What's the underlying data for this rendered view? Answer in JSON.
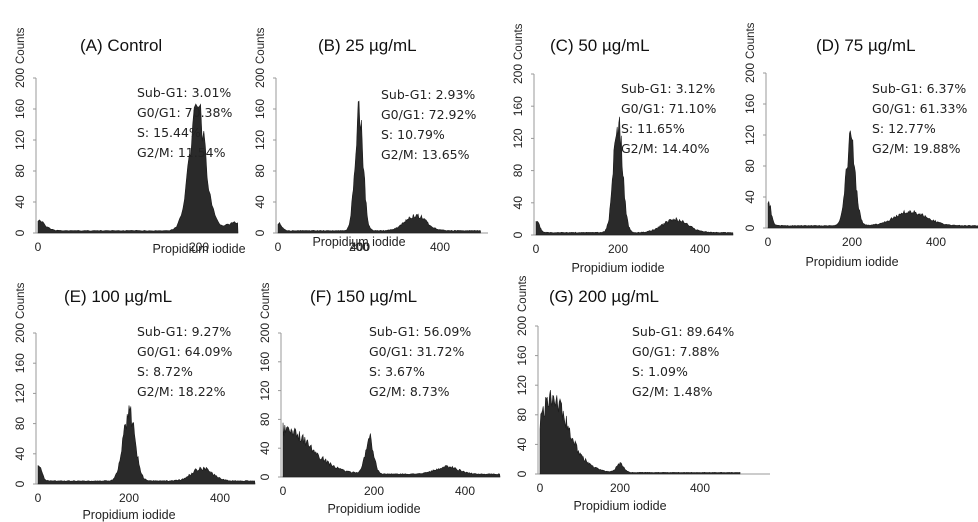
{
  "chart_data": [
    {
      "type": "area",
      "title": "(A) Control",
      "xlabel": "Propidium iodide",
      "ylabel": "Counts",
      "xlim": [
        0,
        500
      ],
      "ylim": [
        0,
        200
      ],
      "xticks": [
        "0",
        "200",
        "400"
      ],
      "yticks": [
        "0",
        "40",
        "80",
        "120",
        "160",
        "200"
      ],
      "stats": [
        "Sub-G1: 3.01%",
        "G0/G1: 70.38%",
        "S: 15.44%",
        "G2/M: 11.54%"
      ],
      "peaks": [
        {
          "center": 0,
          "height": 14,
          "width": 8
        },
        {
          "center": 198,
          "height": 155,
          "width": 10
        },
        {
          "center": 300,
          "height": 24,
          "width": 42
        }
      ],
      "baseline": 3
    },
    {
      "type": "area",
      "title": "(B) 25 µg/mL",
      "xlabel": "Propidium iodide",
      "ylabel": "Counts",
      "xlim": [
        0,
        500
      ],
      "ylim": [
        0,
        200
      ],
      "xticks": [
        "0",
        "200",
        "400"
      ],
      "yticks": [
        "0",
        "40",
        "80",
        "120",
        "160",
        "200"
      ],
      "stats": [
        "Sub-G1: 2.93%",
        "G0/G1: 72.92%",
        "S: 10.79%",
        "G2/M: 13.65%"
      ],
      "peaks": [
        {
          "center": 0,
          "height": 10,
          "width": 8
        },
        {
          "center": 200,
          "height": 155,
          "width": 10
        },
        {
          "center": 340,
          "height": 20,
          "width": 25
        }
      ],
      "baseline": 3
    },
    {
      "type": "area",
      "title": "(C) 50 µg/mL",
      "xlabel": "Propidium iodide",
      "ylabel": "Counts",
      "xlim": [
        0,
        500
      ],
      "ylim": [
        0,
        200
      ],
      "xticks": [
        "0",
        "200",
        "400"
      ],
      "yticks": [
        "0",
        "40",
        "80",
        "120",
        "160",
        "200"
      ],
      "stats": [
        "Sub-G1: 3.12%",
        "G0/G1: 71.10%",
        "S: 11.65%",
        "G2/M: 14.40%"
      ],
      "peaks": [
        {
          "center": 0,
          "height": 15,
          "width": 8
        },
        {
          "center": 200,
          "height": 138,
          "width": 11
        },
        {
          "center": 340,
          "height": 16,
          "width": 30
        }
      ],
      "baseline": 3
    },
    {
      "type": "area",
      "title": "(D) 75 µg/mL",
      "xlabel": "Propidium iodide",
      "ylabel": "Counts",
      "xlim": [
        0,
        500
      ],
      "ylim": [
        0,
        200
      ],
      "xticks": [
        "0",
        "200",
        "400"
      ],
      "yticks": [
        "0",
        "40",
        "80",
        "120",
        "160",
        "200"
      ],
      "stats": [
        "Sub-G1: 6.37%",
        "G0/G1: 61.33%",
        "S: 12.77%",
        "G2/M: 19.88%"
      ],
      "peaks": [
        {
          "center": 0,
          "height": 32,
          "width": 7
        },
        {
          "center": 197,
          "height": 108,
          "width": 11
        },
        {
          "center": 340,
          "height": 18,
          "width": 38
        }
      ],
      "baseline": 3
    },
    {
      "type": "area",
      "title": "(E) 100 µg/mL",
      "xlabel": "Propidium iodide",
      "ylabel": "Counts",
      "xlim": [
        0,
        500
      ],
      "ylim": [
        0,
        200
      ],
      "xticks": [
        "0",
        "200",
        "400"
      ],
      "yticks": [
        "0",
        "40",
        "80",
        "120",
        "160",
        "200"
      ],
      "stats": [
        "Sub-G1: 9.27%",
        "G0/G1: 64.09%",
        "S: 8.72%",
        "G2/M: 18.22%"
      ],
      "peaks": [
        {
          "center": 0,
          "height": 24,
          "width": 7
        },
        {
          "center": 200,
          "height": 90,
          "width": 13
        },
        {
          "center": 360,
          "height": 17,
          "width": 22
        }
      ],
      "baseline": 4
    },
    {
      "type": "area",
      "title": "(F) 150 µg/mL",
      "xlabel": "Propidium iodide",
      "ylabel": "Counts",
      "xlim": [
        0,
        500
      ],
      "ylim": [
        0,
        200
      ],
      "xticks": [
        "0",
        "200",
        "400"
      ],
      "yticks": [
        "0",
        "40",
        "80",
        "120",
        "160",
        "200"
      ],
      "stats": [
        "Sub-G1: 56.09%",
        "G0/G1: 31.72%",
        "S: 3.67%",
        "G2/M: 8.73%"
      ],
      "peaks": [
        {
          "center": 0,
          "height": 62,
          "width": 60
        },
        {
          "center": 190,
          "height": 50,
          "width": 9
        },
        {
          "center": 360,
          "height": 10,
          "width": 25
        }
      ],
      "baseline": 4
    },
    {
      "type": "area",
      "title": "(G) 200 µg/mL",
      "xlabel": "Propidium iodide",
      "ylabel": "Counts",
      "xlim": [
        0,
        500
      ],
      "ylim": [
        0,
        200
      ],
      "xticks": [
        "0",
        "200",
        "400"
      ],
      "yticks": [
        "0",
        "40",
        "80",
        "120",
        "160",
        "200"
      ],
      "stats": [
        "Sub-G1: 89.64%",
        "G0/G1: 7.88%",
        "S: 1.09%",
        "G2/M: 1.48%"
      ],
      "peaks": [
        {
          "center": 28,
          "height": 92,
          "width": 32
        },
        {
          "center": 75,
          "height": 22,
          "width": 40
        },
        {
          "center": 200,
          "height": 12,
          "width": 9
        }
      ],
      "baseline": 2
    }
  ]
}
